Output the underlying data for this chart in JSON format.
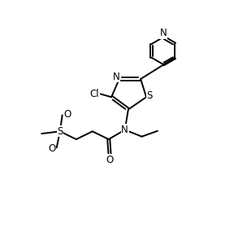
{
  "bg_color": "#ffffff",
  "line_color": "#000000",
  "line_width": 1.4,
  "font_size": 8.5,
  "figsize": [
    2.88,
    2.8
  ],
  "dpi": 100,
  "xlim": [
    0,
    10
  ],
  "ylim": [
    0,
    10
  ]
}
